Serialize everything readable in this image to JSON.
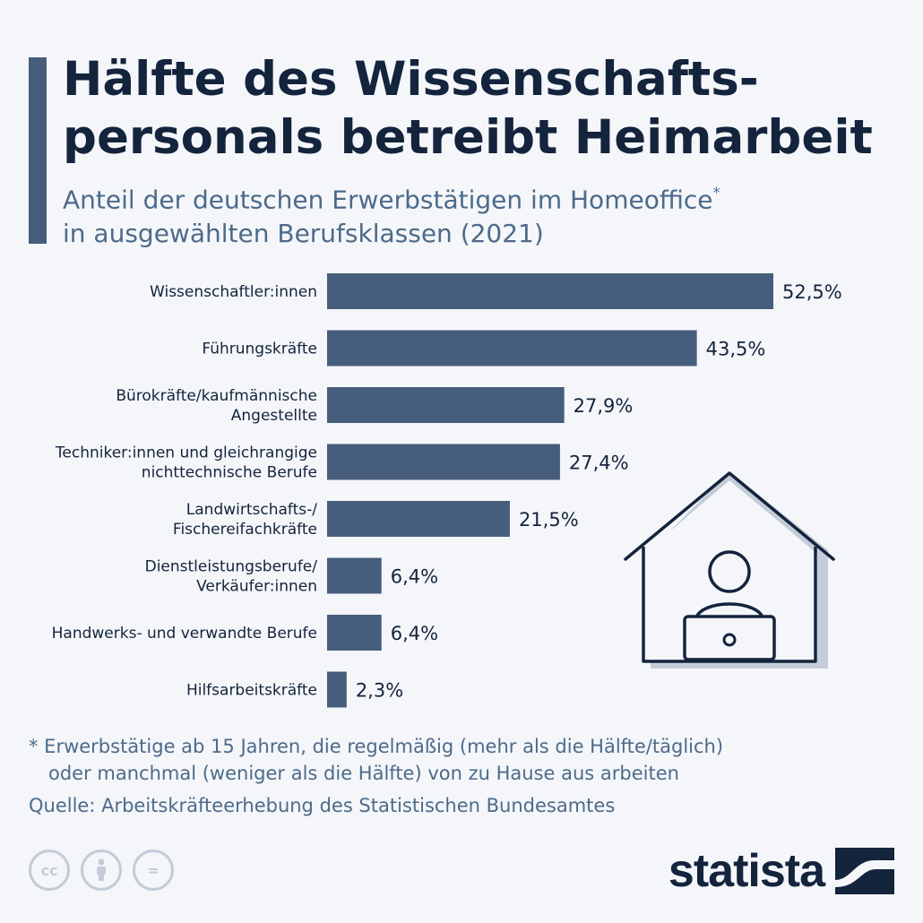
{
  "title_lines": [
    "Hälfte des Wissenschafts-",
    "personals betreibt Heimarbeit"
  ],
  "subtitle": {
    "line1": "Anteil der deutschen Erwerbstätigen im Homeoffice",
    "marker": "*",
    "line2": "in ausgewählten Berufsklassen (2021)"
  },
  "chart_data": {
    "type": "bar",
    "orientation": "horizontal",
    "title": "Hälfte des Wissenschafts-personals betreibt Heimarbeit",
    "categories": [
      [
        "Wissenschaftler:innen"
      ],
      [
        "Führungskräfte"
      ],
      [
        "Bürokräfte/kaufmännische",
        "Angestellte"
      ],
      [
        "Techniker:innen und gleichrangige",
        "nichttechnische Berufe"
      ],
      [
        "Landwirtschafts-/",
        "Fischereifachkräfte"
      ],
      [
        "Dienstleistungsberufe/",
        "Verkäufer:innen"
      ],
      [
        "Handwerks- und verwandte Berufe"
      ],
      [
        "Hilfsarbeitskräfte"
      ]
    ],
    "values": [
      52.5,
      43.5,
      27.9,
      27.4,
      21.5,
      6.4,
      6.4,
      2.3
    ],
    "value_labels": [
      "52,5%",
      "43,5%",
      "27,9%",
      "27,4%",
      "21,5%",
      "6,4%",
      "6,4%",
      "2,3%"
    ],
    "xlim": [
      0,
      52.5
    ],
    "grid": false,
    "bar_color": "#475d7c"
  },
  "footnote": {
    "line1": "* Erwerbstätige ab 15 Jahren, die regelmäßig (mehr als die Hälfte/täglich)",
    "line2": "oder manchmal (weniger als die Hälfte) von zu Hause aus arbeiten"
  },
  "source": "Quelle: Arbeitskräfteerhebung des Statistischen Bundesamtes",
  "license_icons": [
    "cc-icon",
    "by-person-icon",
    "nd-equals-icon"
  ],
  "license_glyphs": [
    "cc",
    "="
  ],
  "brand": {
    "name": "statista",
    "icon": "statista-logo-icon"
  },
  "illustration": "house-with-person-at-laptop-icon",
  "colors": {
    "background": "#f4f6f9",
    "text_dark": "#14243d",
    "text_muted": "#4d6a8a",
    "bar": "#475d7c",
    "icon_fill": "#c3ccd8"
  }
}
